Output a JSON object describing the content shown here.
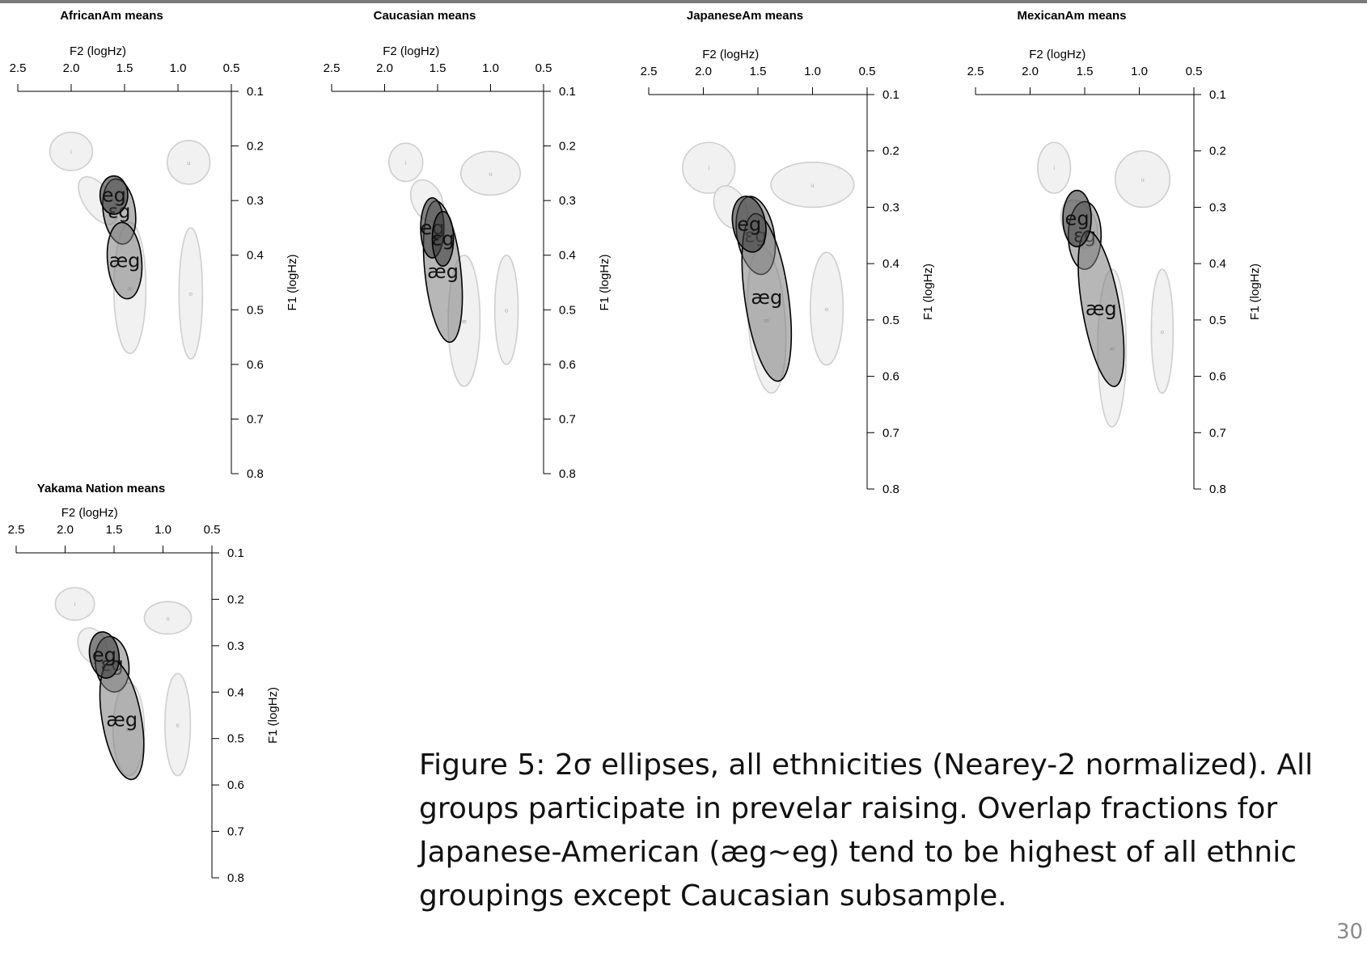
{
  "caption": "Figure 5:  2σ ellipses, all ethnicities (Nearey-2 normalized). All groups participate in prevelar raising. Overlap fractions for Japanese-American (æg~eg) tend to be highest of all ethnic groupings except Caucasian subsample.",
  "page_number": "30",
  "colors": {
    "background_ellipse_fill": "#eeeeee",
    "background_ellipse_stroke": "#cfcfcf",
    "target_ellipse_stroke": "#000000"
  },
  "chart_data": [
    {
      "type": "scatter",
      "title": "AfricanAm means",
      "xlabel": "F2 (logHz)",
      "ylabel": "F1 (logHz)",
      "xlim": [
        2.5,
        0.5
      ],
      "ylim": [
        0.8,
        0.1
      ],
      "x_ticks": [
        "2.5",
        "2.0",
        "1.5",
        "1.0",
        "0.5"
      ],
      "y_ticks": [
        "0.1",
        "0.2",
        "0.3",
        "0.4",
        "0.5",
        "0.6",
        "0.7",
        "0.8"
      ],
      "ellipses": [
        {
          "label": "i",
          "cx": 2.0,
          "cy": 0.21,
          "rx": 0.2,
          "ry": 0.035,
          "angle": 0,
          "shade": "light"
        },
        {
          "label": "u",
          "cx": 0.9,
          "cy": 0.23,
          "rx": 0.2,
          "ry": 0.04,
          "angle": 0,
          "shade": "light"
        },
        {
          "label": "",
          "cx": 1.75,
          "cy": 0.3,
          "rx": 0.13,
          "ry": 0.05,
          "angle": -35,
          "shade": "light"
        },
        {
          "label": "æ",
          "cx": 1.45,
          "cy": 0.46,
          "rx": 0.15,
          "ry": 0.12,
          "angle": 0,
          "shade": "light"
        },
        {
          "label": "o",
          "cx": 0.88,
          "cy": 0.47,
          "rx": 0.11,
          "ry": 0.12,
          "angle": 0,
          "shade": "light"
        },
        {
          "label": "eg",
          "cx": 1.6,
          "cy": 0.29,
          "rx": 0.13,
          "ry": 0.035,
          "angle": 0,
          "shade": "dark"
        },
        {
          "label": "ɛg",
          "cx": 1.55,
          "cy": 0.32,
          "rx": 0.15,
          "ry": 0.06,
          "angle": -8,
          "shade": "mid"
        },
        {
          "label": "æg",
          "cx": 1.5,
          "cy": 0.41,
          "rx": 0.16,
          "ry": 0.07,
          "angle": -5,
          "shade": "mid"
        }
      ]
    },
    {
      "type": "scatter",
      "title": "Caucasian means",
      "xlabel": "F2 (logHz)",
      "ylabel": "F1 (logHz)",
      "xlim": [
        2.5,
        0.5
      ],
      "ylim": [
        0.8,
        0.1
      ],
      "x_ticks": [
        "2.5",
        "2.0",
        "1.5",
        "1.0",
        "0.5"
      ],
      "y_ticks": [
        "0.1",
        "0.2",
        "0.3",
        "0.4",
        "0.5",
        "0.6",
        "0.7",
        "0.8"
      ],
      "ellipses": [
        {
          "label": "i",
          "cx": 1.8,
          "cy": 0.23,
          "rx": 0.16,
          "ry": 0.035,
          "angle": 0,
          "shade": "light"
        },
        {
          "label": "u",
          "cx": 1.0,
          "cy": 0.25,
          "rx": 0.28,
          "ry": 0.04,
          "angle": 0,
          "shade": "light"
        },
        {
          "label": "",
          "cx": 1.6,
          "cy": 0.3,
          "rx": 0.14,
          "ry": 0.04,
          "angle": -25,
          "shade": "light"
        },
        {
          "label": "æ",
          "cx": 1.25,
          "cy": 0.52,
          "rx": 0.15,
          "ry": 0.12,
          "angle": 0,
          "shade": "light"
        },
        {
          "label": "o",
          "cx": 0.85,
          "cy": 0.5,
          "rx": 0.11,
          "ry": 0.1,
          "angle": 0,
          "shade": "light"
        },
        {
          "label": "eg",
          "cx": 1.55,
          "cy": 0.35,
          "rx": 0.11,
          "ry": 0.055,
          "angle": 0,
          "shade": "dark"
        },
        {
          "label": "ɛg",
          "cx": 1.45,
          "cy": 0.37,
          "rx": 0.1,
          "ry": 0.05,
          "angle": 0,
          "shade": "dark"
        },
        {
          "label": "æg",
          "cx": 1.45,
          "cy": 0.43,
          "rx": 0.17,
          "ry": 0.13,
          "angle": -6,
          "shade": "mid"
        }
      ]
    },
    {
      "type": "scatter",
      "title": "JapaneseAm means",
      "xlabel": "F2 (logHz)",
      "ylabel": "F1 (logHz)",
      "xlim": [
        2.5,
        0.5
      ],
      "ylim": [
        0.8,
        0.1
      ],
      "x_ticks": [
        "2.5",
        "2.0",
        "1.5",
        "1.0",
        "0.5"
      ],
      "y_ticks": [
        "0.1",
        "0.2",
        "0.3",
        "0.4",
        "0.5",
        "0.6",
        "0.7",
        "0.8"
      ],
      "ellipses": [
        {
          "label": "i",
          "cx": 1.95,
          "cy": 0.23,
          "rx": 0.24,
          "ry": 0.045,
          "angle": 0,
          "shade": "light"
        },
        {
          "label": "u",
          "cx": 1.0,
          "cy": 0.26,
          "rx": 0.38,
          "ry": 0.04,
          "angle": 0,
          "shade": "light"
        },
        {
          "label": "",
          "cx": 1.75,
          "cy": 0.3,
          "rx": 0.14,
          "ry": 0.04,
          "angle": -25,
          "shade": "light"
        },
        {
          "label": "æ",
          "cx": 1.42,
          "cy": 0.5,
          "rx": 0.17,
          "ry": 0.13,
          "angle": -4,
          "shade": "light"
        },
        {
          "label": "o",
          "cx": 0.87,
          "cy": 0.48,
          "rx": 0.15,
          "ry": 0.1,
          "angle": 0,
          "shade": "light"
        },
        {
          "label": "eg",
          "cx": 1.58,
          "cy": 0.33,
          "rx": 0.15,
          "ry": 0.05,
          "angle": -10,
          "shade": "dark"
        },
        {
          "label": "ɛg",
          "cx": 1.52,
          "cy": 0.35,
          "rx": 0.17,
          "ry": 0.07,
          "angle": -10,
          "shade": "mid"
        },
        {
          "label": "æg",
          "cx": 1.42,
          "cy": 0.46,
          "rx": 0.2,
          "ry": 0.15,
          "angle": -8,
          "shade": "mid"
        }
      ]
    },
    {
      "type": "scatter",
      "title": "MexicanAm means",
      "xlabel": "F2 (logHz)",
      "ylabel": "F1 (logHz)",
      "xlim": [
        2.5,
        0.5
      ],
      "ylim": [
        0.8,
        0.1
      ],
      "x_ticks": [
        "2.5",
        "2.0",
        "1.5",
        "1.0",
        "0.5"
      ],
      "y_ticks": [
        "0.1",
        "0.2",
        "0.3",
        "0.4",
        "0.5",
        "0.6",
        "0.7",
        "0.8"
      ],
      "ellipses": [
        {
          "label": "i",
          "cx": 1.78,
          "cy": 0.23,
          "rx": 0.15,
          "ry": 0.045,
          "angle": 0,
          "shade": "light"
        },
        {
          "label": "u",
          "cx": 0.97,
          "cy": 0.25,
          "rx": 0.25,
          "ry": 0.05,
          "angle": 0,
          "shade": "light"
        },
        {
          "label": "",
          "cx": 1.55,
          "cy": 0.33,
          "rx": 0.15,
          "ry": 0.045,
          "angle": -25,
          "shade": "light"
        },
        {
          "label": "æ",
          "cx": 1.25,
          "cy": 0.55,
          "rx": 0.13,
          "ry": 0.14,
          "angle": 0,
          "shade": "light"
        },
        {
          "label": "o",
          "cx": 0.79,
          "cy": 0.52,
          "rx": 0.1,
          "ry": 0.11,
          "angle": 0,
          "shade": "light"
        },
        {
          "label": "eg",
          "cx": 1.57,
          "cy": 0.32,
          "rx": 0.13,
          "ry": 0.05,
          "angle": 0,
          "shade": "dark"
        },
        {
          "label": "ɛg",
          "cx": 1.5,
          "cy": 0.35,
          "rx": 0.15,
          "ry": 0.06,
          "angle": 0,
          "shade": "mid"
        },
        {
          "label": "æg",
          "cx": 1.35,
          "cy": 0.48,
          "rx": 0.17,
          "ry": 0.14,
          "angle": -10,
          "shade": "mid"
        }
      ]
    },
    {
      "type": "scatter",
      "title": "Yakama Nation means",
      "xlabel": "F2 (logHz)",
      "ylabel": "F1 (logHz)",
      "xlim": [
        2.5,
        0.5
      ],
      "ylim": [
        0.8,
        0.1
      ],
      "x_ticks": [
        "2.5",
        "2.0",
        "1.5",
        "1.0",
        "0.5"
      ],
      "y_ticks": [
        "0.1",
        "0.2",
        "0.3",
        "0.4",
        "0.5",
        "0.6",
        "0.7",
        "0.8"
      ],
      "ellipses": [
        {
          "label": "i",
          "cx": 1.9,
          "cy": 0.21,
          "rx": 0.2,
          "ry": 0.035,
          "angle": 0,
          "shade": "light"
        },
        {
          "label": "u",
          "cx": 0.95,
          "cy": 0.24,
          "rx": 0.24,
          "ry": 0.035,
          "angle": 0,
          "shade": "light"
        },
        {
          "label": "",
          "cx": 1.72,
          "cy": 0.3,
          "rx": 0.14,
          "ry": 0.04,
          "angle": -25,
          "shade": "light"
        },
        {
          "label": "æ",
          "cx": 1.35,
          "cy": 0.48,
          "rx": 0.16,
          "ry": 0.1,
          "angle": 0,
          "shade": "light"
        },
        {
          "label": "o",
          "cx": 0.85,
          "cy": 0.47,
          "rx": 0.13,
          "ry": 0.11,
          "angle": 0,
          "shade": "light"
        },
        {
          "label": "eg",
          "cx": 1.6,
          "cy": 0.32,
          "rx": 0.15,
          "ry": 0.05,
          "angle": -8,
          "shade": "dark"
        },
        {
          "label": "ɛg",
          "cx": 1.52,
          "cy": 0.34,
          "rx": 0.17,
          "ry": 0.06,
          "angle": -8,
          "shade": "mid"
        },
        {
          "label": "æg",
          "cx": 1.42,
          "cy": 0.46,
          "rx": 0.2,
          "ry": 0.13,
          "angle": -10,
          "shade": "mid"
        }
      ]
    }
  ]
}
